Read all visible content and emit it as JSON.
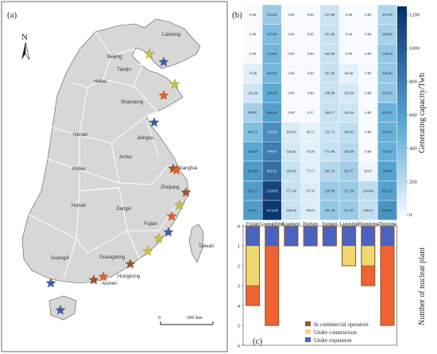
{
  "panel_a": {
    "label": "(a)",
    "north_label": "N",
    "scale_zero": "0",
    "scale_label": "300 km",
    "provinces": [
      "Liaoning",
      "Beijing",
      "Tianjin",
      "Hebei",
      "Shandong",
      "Henan",
      "Jiangsu",
      "Anhui",
      "Hubei",
      "Zhejiang",
      "Shanghai",
      "Hunan",
      "Jiangxi",
      "Fujian",
      "Taiwan",
      "Guangxi",
      "Guangdong",
      "Hongkong",
      "Aomen"
    ],
    "colors": {
      "land": "#d7d7d7",
      "province_border": "#ffffff",
      "outline": "#555555",
      "sea": "#ffffff",
      "commercial_star": "#e85b2a",
      "construction_star": "#c8c63a",
      "expansion_star": "#3a5fb0",
      "mixed_star": "#a0522d"
    }
  },
  "panel_b": {
    "label": "(b)",
    "colorbar_title": "Generating capacity/Twh",
    "colorbar_ticks": [
      "0",
      "200",
      "400",
      "600",
      "800",
      "1000",
      "1200"
    ],
    "colors": {
      "low": "#f7fbff",
      "mid": "#6baed6",
      "high": "#08306b"
    }
  },
  "panel_c": {
    "label": "(c)",
    "y_title": "Number of nuclear plant",
    "legend": [
      "In commercial operation",
      "Under construction",
      "Under expansion"
    ],
    "colors": {
      "commercial": "#ef6233",
      "construction": "#f0d870",
      "expansion": "#4a63c0",
      "bar_border": "#8b5a2b"
    }
  },
  "chart_data": [
    {
      "type": "heatmap",
      "columns": [
        "Fujian",
        "Guangdong",
        "Guangxi",
        "Hainan",
        "Jiangsu",
        "Liaoning",
        "Shandong",
        "Zhejiang"
      ],
      "rows": [
        [
          "0.00",
          "334.00",
          "0.00",
          "0.00",
          "157.00",
          "0.00",
          "0.00",
          "257.00"
        ],
        [
          "0.00",
          "425.00",
          "0.00",
          "0.00",
          "161.00",
          "0.00",
          "0.00",
          "286.00"
        ],
        [
          "0.00",
          "474.00",
          "0.00",
          "0.00",
          "162.00",
          "0.00",
          "0.00",
          "346.00"
        ],
        [
          "74.00",
          "464.00",
          "0.00",
          "0.00",
          "167.00",
          "64.00",
          "0.00",
          "346.00"
        ],
        [
          "142.00",
          "549.00",
          "0.00",
          "0.00",
          "168.00",
          "120.00",
          "0.00",
          "354.00"
        ],
        [
          "289.97",
          "606.48",
          "0.00",
          "4.37",
          "166.17",
          "144.66",
          "0.00",
          "496.23"
        ],
        [
          "409.12",
          "703.45",
          "102.99",
          "60.11",
          "153.73",
          "199.83",
          "0.00",
          "503.64"
        ],
        [
          "560.08",
          "799.87",
          "126.81",
          "74.59",
          "172.80",
          "235.98",
          "0.00",
          "510.56"
        ],
        [
          "643.68",
          "892.41",
          "166.96",
          "77.17",
          "242.18",
          "301.57",
          "38.67",
          "586.94"
        ],
        [
          "621.17",
          "1128.05",
          "171.34",
          "97.20",
          "328.90",
          "327.30",
          "204.94",
          "602.25"
        ],
        [
          "625.31",
          "1214.40",
          "168.38",
          "95.63",
          "355.39",
          "327.23",
          "190.51",
          "685.34"
        ]
      ],
      "colorbar_range": [
        0,
        1250
      ]
    },
    {
      "type": "bar",
      "categories": [
        "Fujian",
        "Guangdong",
        "Guangxi",
        "Hainan",
        "Jiangsu",
        "Liaoning",
        "Shandong",
        "Zhejiang"
      ],
      "series": [
        {
          "name": "Under expansion",
          "values": [
            1,
            1,
            1,
            1,
            1,
            1,
            1,
            1
          ]
        },
        {
          "name": "Under construction",
          "values": [
            2,
            0,
            0,
            0,
            0,
            1,
            1,
            0
          ]
        },
        {
          "name": "In commercial operation",
          "values": [
            1,
            4,
            0,
            0,
            0,
            0,
            1,
            4
          ]
        }
      ],
      "ylim": [
        0,
        6
      ],
      "y_ticks": [
        "0",
        "1",
        "2",
        "3",
        "4",
        "5",
        "6"
      ],
      "y_inverted": true
    }
  ]
}
